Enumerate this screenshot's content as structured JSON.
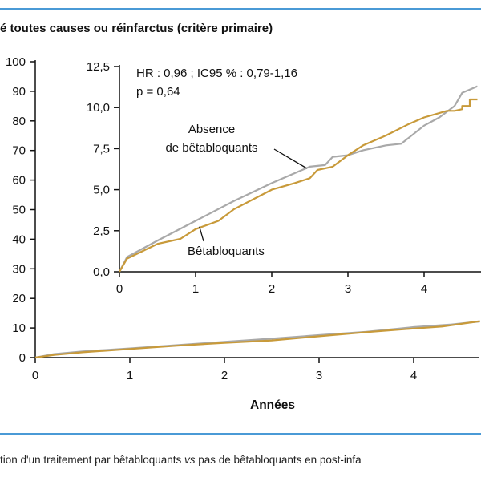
{
  "title": "é toutes causes ou réinfarctus (critère primaire)",
  "caption": {
    "before": "tion d'un traitement par bêtabloquants ",
    "italic": "vs",
    "after": " pas de bêtabloquants en post-infa"
  },
  "colors": {
    "rule": "#4a9ad6",
    "absence": "#a9a9a9",
    "beta": "#c89a3a",
    "axis": "#111111"
  },
  "chart_data": [
    {
      "type": "line",
      "xlabel": "Années",
      "ylabel": "",
      "xlim": [
        0,
        4.7
      ],
      "ylim": [
        0,
        100
      ],
      "x_ticks": [
        "0",
        "1",
        "2",
        "3",
        "4"
      ],
      "y_ticks": [
        "0",
        "10",
        "20",
        "30",
        "40",
        "50",
        "60",
        "70",
        "80",
        "90",
        "100"
      ],
      "series": [
        {
          "key": "absence",
          "x": [
            0,
            0.2,
            0.5,
            1.0,
            1.5,
            2.0,
            2.5,
            3.0,
            3.5,
            4.0,
            4.4,
            4.7
          ],
          "y": [
            0,
            1.2,
            2.1,
            3.1,
            4.2,
            5.3,
            6.4,
            7.6,
            8.7,
            10.3,
            11.2,
            12.2
          ]
        },
        {
          "key": "beta",
          "x": [
            0,
            0.2,
            0.5,
            1.0,
            1.5,
            2.0,
            2.5,
            3.0,
            3.5,
            4.0,
            4.3,
            4.7
          ],
          "y": [
            0,
            0.9,
            1.8,
            2.9,
            4.0,
            5.0,
            5.8,
            7.2,
            8.6,
            9.8,
            10.5,
            12.3
          ]
        }
      ]
    },
    {
      "type": "line",
      "inset": true,
      "xlim": [
        0,
        4.7
      ],
      "ylim": [
        0,
        12.5
      ],
      "x_ticks": [
        "0",
        "1",
        "2",
        "3",
        "4"
      ],
      "y_ticks": [
        "0,0",
        "2,5",
        "5,0",
        "7,5",
        "10,0",
        "12,5"
      ],
      "annotations": [
        "HR : 0,96 ; IC95 % : 0,79-1,16",
        "p = 0,64"
      ],
      "series": [
        {
          "name": "Absence\nde bêtabloquants",
          "name_lines": [
            "Absence",
            "de bêtabloquants"
          ],
          "key": "absence",
          "x": [
            0,
            0.1,
            0.5,
            1.0,
            1.5,
            2.0,
            2.5,
            2.7,
            2.8,
            3.0,
            3.2,
            3.5,
            3.7,
            4.0,
            4.2,
            4.4,
            4.5,
            4.6,
            4.7
          ],
          "y": [
            0,
            0.9,
            1.9,
            3.1,
            4.3,
            5.4,
            6.4,
            6.5,
            7.0,
            7.1,
            7.4,
            7.7,
            7.8,
            8.9,
            9.4,
            10.1,
            10.9,
            11.1,
            11.3
          ]
        },
        {
          "name": "Bêtabloquants",
          "name_lines": [
            "Bêtabloquants"
          ],
          "key": "beta",
          "x": [
            0,
            0.1,
            0.5,
            0.8,
            1.0,
            1.3,
            1.5,
            2.0,
            2.3,
            2.5,
            2.6,
            2.8,
            3.0,
            3.2,
            3.5,
            3.8,
            4.0,
            4.3,
            4.4,
            4.5,
            4.5,
            4.6,
            4.6,
            4.7
          ],
          "y": [
            0,
            0.8,
            1.7,
            2.0,
            2.6,
            3.1,
            3.8,
            5.0,
            5.4,
            5.7,
            6.2,
            6.4,
            7.1,
            7.7,
            8.3,
            9.0,
            9.4,
            9.8,
            9.8,
            9.9,
            10.1,
            10.1,
            10.5,
            10.5
          ]
        }
      ]
    }
  ]
}
